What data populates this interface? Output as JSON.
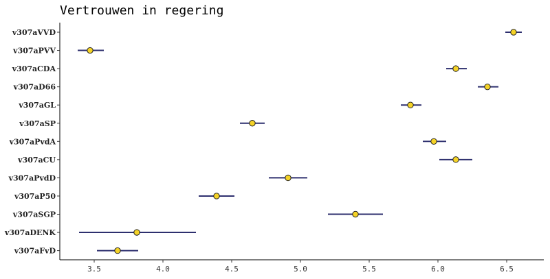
{
  "chart_data": {
    "type": "scatter",
    "title": "Vertrouwen in regering",
    "xlabel": "",
    "ylabel": "",
    "xlim": [
      3.25,
      6.77
    ],
    "xticks": [
      "3.5",
      "4.0",
      "4.5",
      "5.0",
      "5.5",
      "6.0",
      "6.5"
    ],
    "grid": false,
    "colors": {
      "line": "#2d2f6e",
      "point": "#f5d327",
      "point_edge": "#222222"
    },
    "categories": [
      "v307aVVD",
      "v307aPVV",
      "v307aCDA",
      "v307aD66",
      "v307aGL",
      "v307aSP",
      "v307aPvdA",
      "v307aCU",
      "v307aPvdD",
      "v307aP50",
      "v307aSGP",
      "v307aDENK",
      "v307aFvD"
    ],
    "values": [
      6.55,
      3.47,
      6.13,
      6.36,
      5.8,
      4.65,
      5.97,
      6.13,
      4.91,
      4.39,
      5.4,
      3.81,
      3.67
    ],
    "lower": [
      6.49,
      3.38,
      6.06,
      6.29,
      5.73,
      4.56,
      5.89,
      6.01,
      4.77,
      4.26,
      5.2,
      3.39,
      3.52
    ],
    "upper": [
      6.61,
      3.57,
      6.21,
      6.44,
      5.88,
      4.74,
      6.06,
      6.25,
      5.05,
      4.52,
      5.6,
      4.24,
      3.82
    ]
  }
}
